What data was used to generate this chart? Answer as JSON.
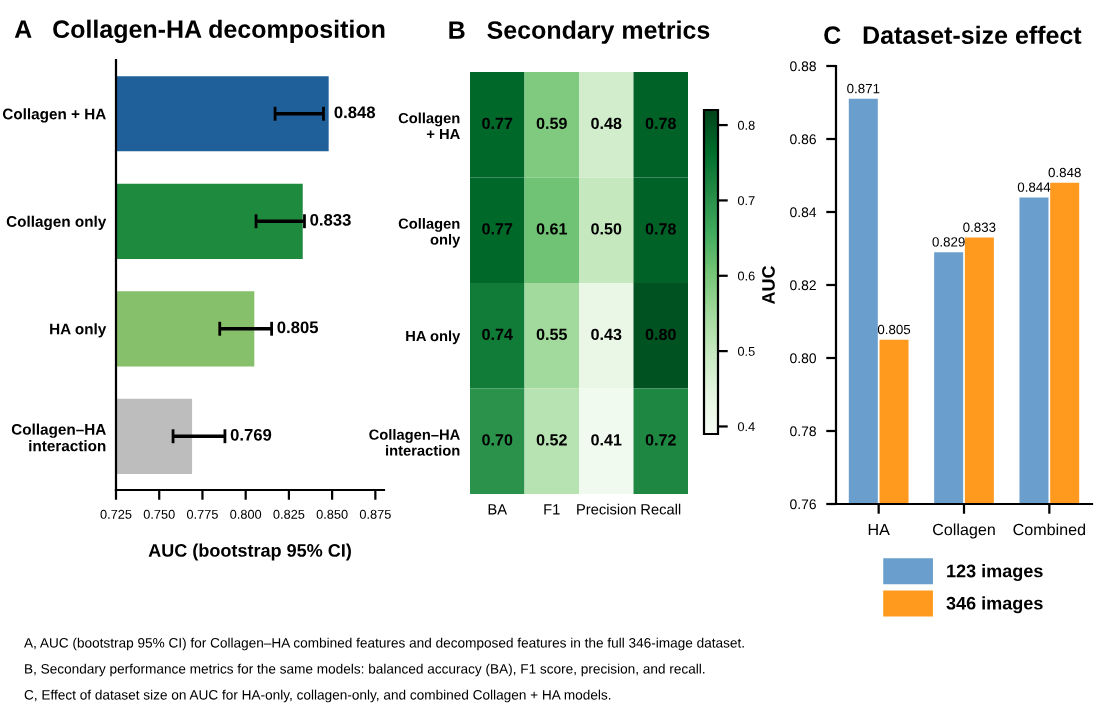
{
  "chart_data": [
    {
      "type": "bar",
      "orientation": "horizontal",
      "title": "A   Collagen-HA decomposition",
      "xlabel": "AUC (bootstrap 95% CI)",
      "categories": [
        "Collagen + HA",
        "Collagen only",
        "HA only",
        "Collagen–HA\ninteraction"
      ],
      "values": [
        0.848,
        0.833,
        0.805,
        0.769
      ],
      "colors": [
        "#1f5f9a",
        "#1e8a3e",
        "#86c06a",
        "#bdbdbd"
      ],
      "errors": [
        [
          0.817,
          0.845
        ],
        [
          0.806,
          0.834
        ],
        [
          0.785,
          0.815
        ],
        [
          0.758,
          0.788
        ]
      ],
      "data_labels": true,
      "xlim": [
        0.725,
        0.88
      ],
      "xticks": [
        {
          "value": 0.725,
          "label": "0.725"
        },
        {
          "value": 0.75,
          "label": "0.750"
        },
        {
          "value": 0.775,
          "label": "0.775"
        },
        {
          "value": 0.8,
          "label": "0.800"
        },
        {
          "value": 0.825,
          "label": "0.825"
        },
        {
          "value": 0.85,
          "label": "0.850"
        },
        {
          "value": 0.875,
          "label": "0.875"
        }
      ],
      "grid": false,
      "legend": false
    },
    {
      "type": "heatmap",
      "title": "B   Secondary metrics",
      "categories": [
        "BA",
        "F1",
        "Precision",
        "Recall"
      ],
      "y_categories": [
        "Collagen\n+ HA",
        "Collagen\nonly",
        "HA only",
        "Collagen–HA\ninteraction"
      ],
      "cells": [
        [
          0.77,
          0.59,
          0.48,
          0.78
        ],
        [
          0.77,
          0.61,
          0.5,
          0.78
        ],
        [
          0.74,
          0.55,
          0.43,
          0.8
        ],
        [
          0.7,
          0.52,
          0.41,
          0.72
        ]
      ],
      "cell_labels": [
        [
          "0.77",
          "0.59",
          "0.48",
          "0.78"
        ],
        [
          "0.77",
          "0.61",
          "0.50",
          "0.78"
        ],
        [
          "0.74",
          "0.55",
          "0.43",
          "0.80"
        ],
        [
          "0.70",
          "0.52",
          "0.41",
          "0.72"
        ]
      ],
      "clim": [
        0.39,
        0.82
      ],
      "cticks": [
        0.4,
        0.5,
        0.6,
        0.7,
        0.8
      ]
    },
    {
      "type": "bar",
      "title": "C   Dataset-size effect",
      "ylabel": "AUC",
      "categories": [
        "HA",
        "Collagen",
        "Combined"
      ],
      "series": [
        {
          "name": "123 images",
          "color": "#6a9fcd",
          "values": [
            0.871,
            0.829,
            0.844
          ]
        },
        {
          "name": "346 images",
          "color": "#ff9a1f",
          "values": [
            0.805,
            0.833,
            0.848
          ]
        }
      ],
      "data_labels": true,
      "ylim": [
        0.76,
        0.88
      ],
      "yticks": [
        {
          "value": 0.76,
          "label": "0.76"
        },
        {
          "value": 0.78,
          "label": "0.78"
        },
        {
          "value": 0.8,
          "label": "0.80"
        },
        {
          "value": 0.82,
          "label": "0.82"
        },
        {
          "value": 0.84,
          "label": "0.84"
        },
        {
          "value": 0.86,
          "label": "0.86"
        },
        {
          "value": 0.88,
          "label": "0.88"
        }
      ],
      "grid": false,
      "legend": "bottom",
      "annotations": [
        "A, AUC (bootstrap 95% CI) for Collagen–HA combined features and decomposed features in the full 346-image dataset.",
        "B, Secondary performance metrics for the same models: balanced accuracy (BA), F1 score, precision, and recall.",
        "C, Effect of dataset size on AUC for HA-only, collagen-only, and combined Collagen + HA models."
      ]
    }
  ]
}
